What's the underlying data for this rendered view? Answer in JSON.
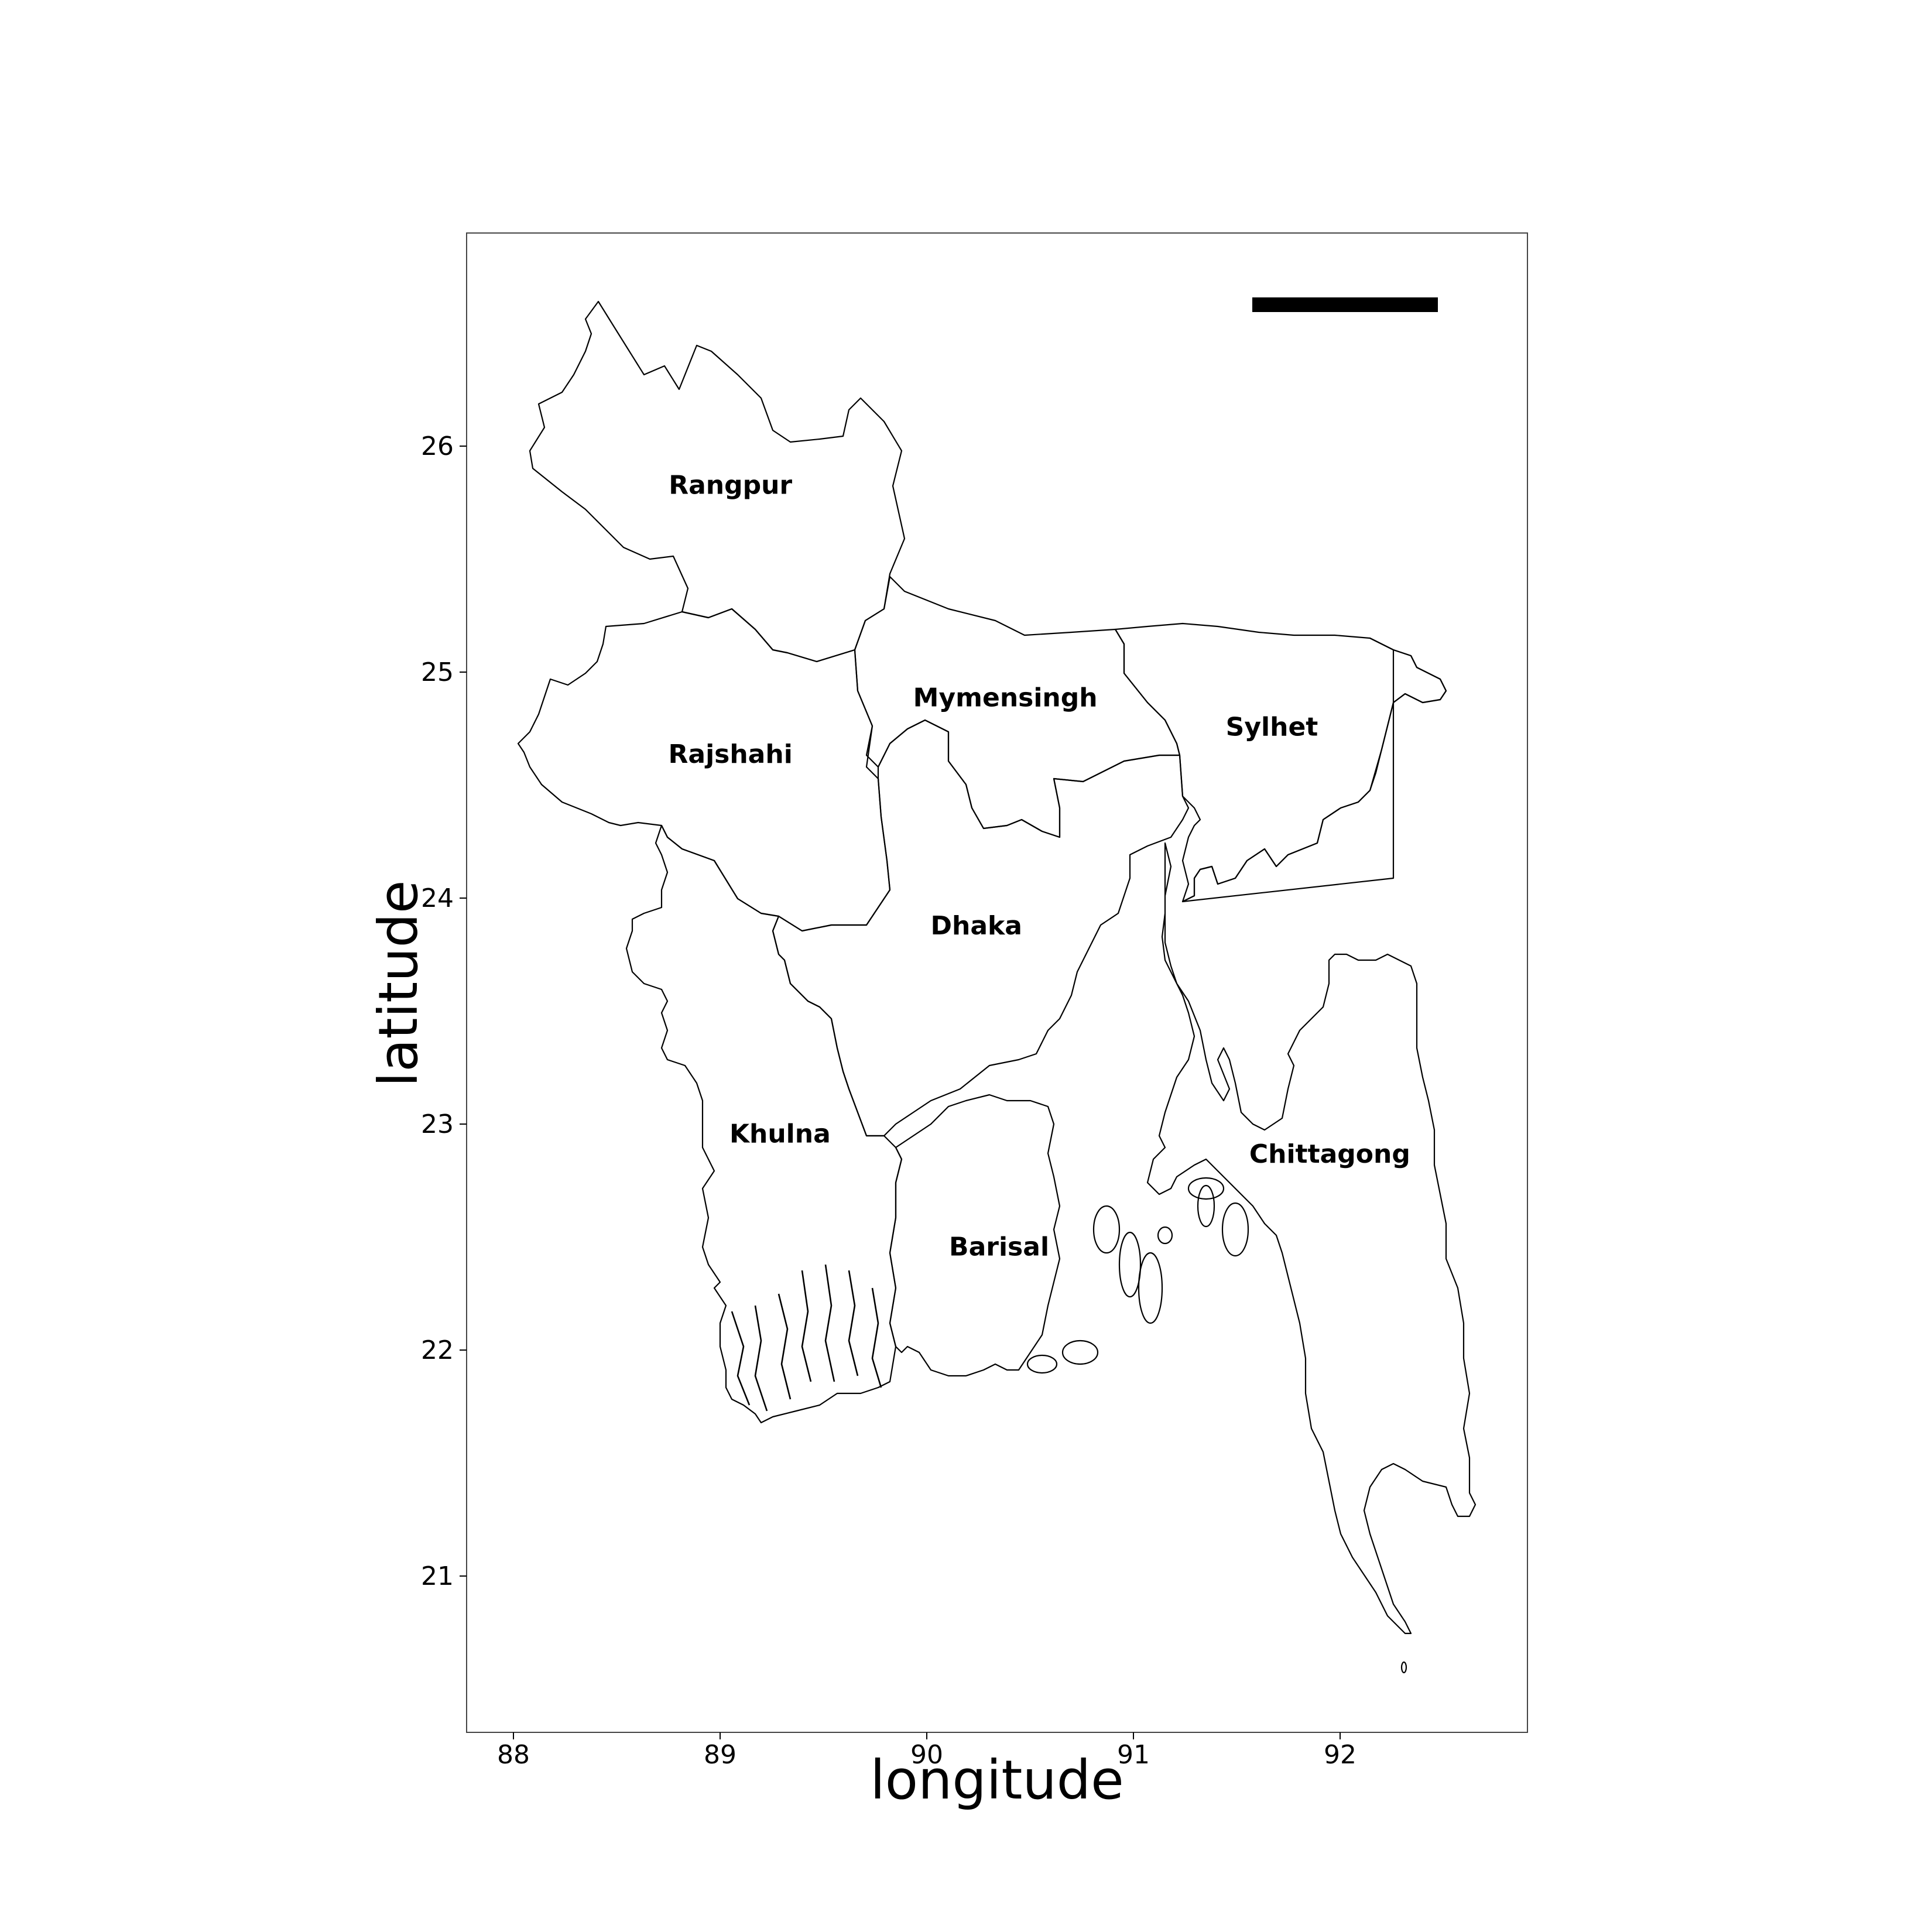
{
  "map": {
    "xlabel": "longitude",
    "ylabel": "latitude",
    "x_ticks": [
      "88",
      "89",
      "90",
      "91",
      "92"
    ],
    "y_ticks": [
      "21",
      "22",
      "23",
      "24",
      "25",
      "26"
    ],
    "regions": [
      {
        "name": "Rangpur",
        "lon": 89.05,
        "lat": 25.82
      },
      {
        "name": "Rajshahi",
        "lon": 89.05,
        "lat": 24.63
      },
      {
        "name": "Mymensingh",
        "lon": 90.38,
        "lat": 24.88
      },
      {
        "name": "Sylhet",
        "lon": 91.67,
        "lat": 24.75
      },
      {
        "name": "Dhaka",
        "lon": 90.24,
        "lat": 23.87
      },
      {
        "name": "Khulna",
        "lon": 89.29,
        "lat": 22.95
      },
      {
        "name": "Chittagong",
        "lon": 91.95,
        "lat": 22.86
      },
      {
        "name": "Barisal",
        "lon": 90.35,
        "lat": 22.45
      }
    ]
  }
}
